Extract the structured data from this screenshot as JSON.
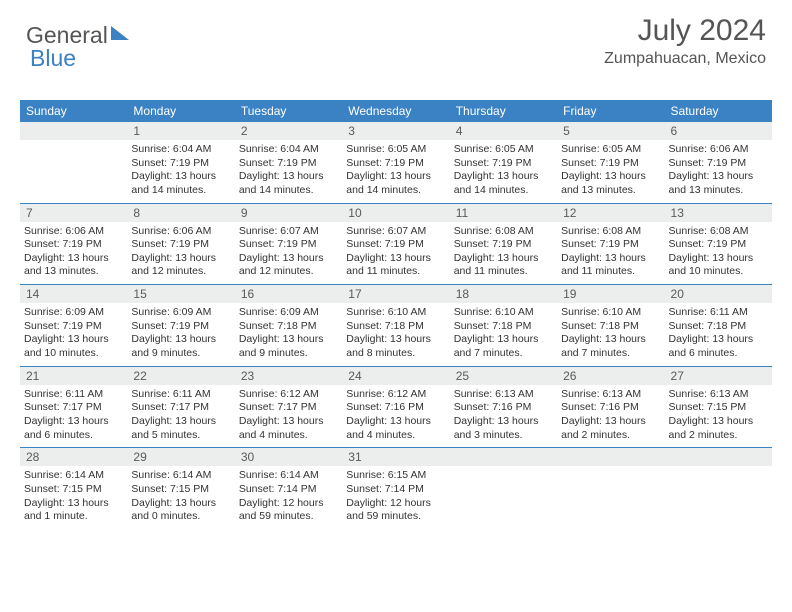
{
  "brand": {
    "part1": "General",
    "part2": "Blue"
  },
  "header": {
    "title": "July 2024",
    "location": "Zumpahuacan, Mexico"
  },
  "colors": {
    "accent": "#3b82c4",
    "grey_bg": "#eceded",
    "text": "#555"
  },
  "dayNames": [
    "Sunday",
    "Monday",
    "Tuesday",
    "Wednesday",
    "Thursday",
    "Friday",
    "Saturday"
  ],
  "layout": {
    "firstWeekday": 1,
    "daysInMonth": 31,
    "rows": 5
  },
  "days": {
    "1": {
      "sr": "6:04 AM",
      "ss": "7:19 PM",
      "dl": "13 hours and 14 minutes."
    },
    "2": {
      "sr": "6:04 AM",
      "ss": "7:19 PM",
      "dl": "13 hours and 14 minutes."
    },
    "3": {
      "sr": "6:05 AM",
      "ss": "7:19 PM",
      "dl": "13 hours and 14 minutes."
    },
    "4": {
      "sr": "6:05 AM",
      "ss": "7:19 PM",
      "dl": "13 hours and 14 minutes."
    },
    "5": {
      "sr": "6:05 AM",
      "ss": "7:19 PM",
      "dl": "13 hours and 13 minutes."
    },
    "6": {
      "sr": "6:06 AM",
      "ss": "7:19 PM",
      "dl": "13 hours and 13 minutes."
    },
    "7": {
      "sr": "6:06 AM",
      "ss": "7:19 PM",
      "dl": "13 hours and 13 minutes."
    },
    "8": {
      "sr": "6:06 AM",
      "ss": "7:19 PM",
      "dl": "13 hours and 12 minutes."
    },
    "9": {
      "sr": "6:07 AM",
      "ss": "7:19 PM",
      "dl": "13 hours and 12 minutes."
    },
    "10": {
      "sr": "6:07 AM",
      "ss": "7:19 PM",
      "dl": "13 hours and 11 minutes."
    },
    "11": {
      "sr": "6:08 AM",
      "ss": "7:19 PM",
      "dl": "13 hours and 11 minutes."
    },
    "12": {
      "sr": "6:08 AM",
      "ss": "7:19 PM",
      "dl": "13 hours and 11 minutes."
    },
    "13": {
      "sr": "6:08 AM",
      "ss": "7:19 PM",
      "dl": "13 hours and 10 minutes."
    },
    "14": {
      "sr": "6:09 AM",
      "ss": "7:19 PM",
      "dl": "13 hours and 10 minutes."
    },
    "15": {
      "sr": "6:09 AM",
      "ss": "7:19 PM",
      "dl": "13 hours and 9 minutes."
    },
    "16": {
      "sr": "6:09 AM",
      "ss": "7:18 PM",
      "dl": "13 hours and 9 minutes."
    },
    "17": {
      "sr": "6:10 AM",
      "ss": "7:18 PM",
      "dl": "13 hours and 8 minutes."
    },
    "18": {
      "sr": "6:10 AM",
      "ss": "7:18 PM",
      "dl": "13 hours and 7 minutes."
    },
    "19": {
      "sr": "6:10 AM",
      "ss": "7:18 PM",
      "dl": "13 hours and 7 minutes."
    },
    "20": {
      "sr": "6:11 AM",
      "ss": "7:18 PM",
      "dl": "13 hours and 6 minutes."
    },
    "21": {
      "sr": "6:11 AM",
      "ss": "7:17 PM",
      "dl": "13 hours and 6 minutes."
    },
    "22": {
      "sr": "6:11 AM",
      "ss": "7:17 PM",
      "dl": "13 hours and 5 minutes."
    },
    "23": {
      "sr": "6:12 AM",
      "ss": "7:17 PM",
      "dl": "13 hours and 4 minutes."
    },
    "24": {
      "sr": "6:12 AM",
      "ss": "7:16 PM",
      "dl": "13 hours and 4 minutes."
    },
    "25": {
      "sr": "6:13 AM",
      "ss": "7:16 PM",
      "dl": "13 hours and 3 minutes."
    },
    "26": {
      "sr": "6:13 AM",
      "ss": "7:16 PM",
      "dl": "13 hours and 2 minutes."
    },
    "27": {
      "sr": "6:13 AM",
      "ss": "7:15 PM",
      "dl": "13 hours and 2 minutes."
    },
    "28": {
      "sr": "6:14 AM",
      "ss": "7:15 PM",
      "dl": "13 hours and 1 minute."
    },
    "29": {
      "sr": "6:14 AM",
      "ss": "7:15 PM",
      "dl": "13 hours and 0 minutes."
    },
    "30": {
      "sr": "6:14 AM",
      "ss": "7:14 PM",
      "dl": "12 hours and 59 minutes."
    },
    "31": {
      "sr": "6:15 AM",
      "ss": "7:14 PM",
      "dl": "12 hours and 59 minutes."
    }
  },
  "labels": {
    "sunrise": "Sunrise: ",
    "sunset": "Sunset: ",
    "daylight": "Daylight: "
  }
}
